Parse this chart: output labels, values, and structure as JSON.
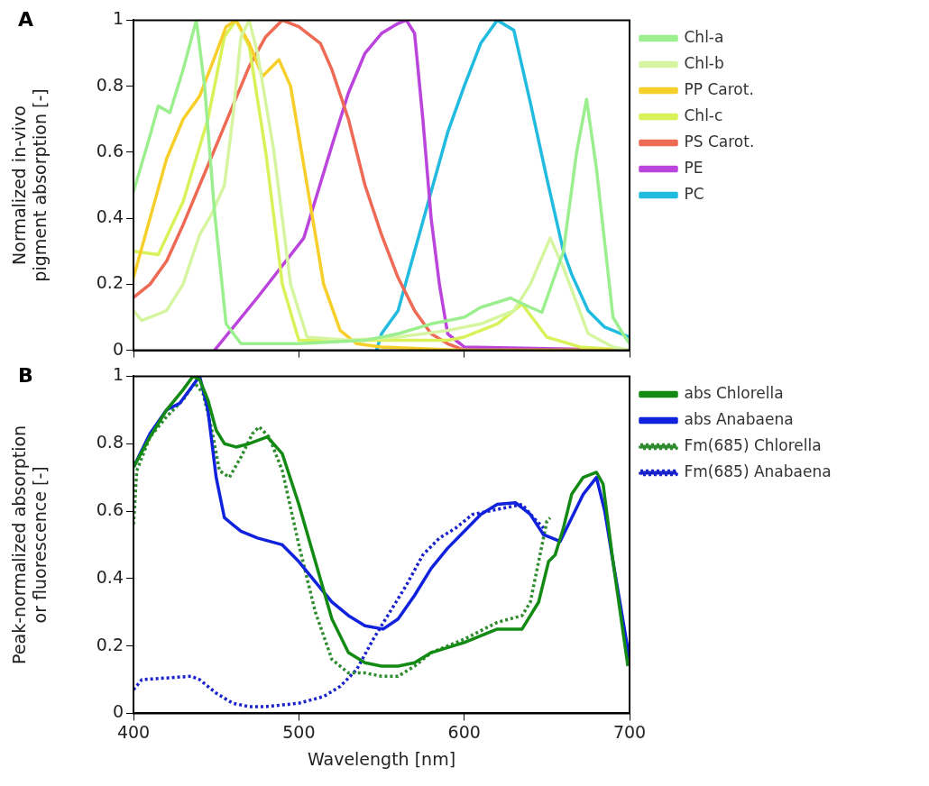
{
  "chart_data": [
    {
      "type": "line",
      "annotations": [
        "A"
      ],
      "ylabel": "Normalized in-vivo\npigment absorption [-]",
      "xlim": [
        400,
        700
      ],
      "xticks": [
        {
          "value": 400,
          "label": null
        },
        {
          "value": 500,
          "label": null
        },
        {
          "value": 600,
          "label": null
        },
        {
          "value": 700,
          "label": null
        }
      ],
      "ylim": [
        0,
        1
      ],
      "yticks": [
        0,
        0.2,
        0.4,
        0.6,
        0.8,
        1.0
      ],
      "tick_labels": "y",
      "legend": "right",
      "series": [
        {
          "name": "Chl-a",
          "color": "#9cef8e",
          "line_style": "solid",
          "x": [
            400,
            410,
            415,
            422,
            430,
            438,
            443,
            449,
            456,
            465,
            480,
            500,
            540,
            560,
            580,
            600,
            610,
            628,
            640,
            647,
            660,
            668,
            674,
            680,
            690,
            696,
            700
          ],
          "values": [
            0.48,
            0.65,
            0.74,
            0.72,
            0.85,
            1.0,
            0.8,
            0.42,
            0.08,
            0.02,
            0.02,
            0.02,
            0.03,
            0.05,
            0.08,
            0.1,
            0.13,
            0.158,
            0.13,
            0.115,
            0.3,
            0.6,
            0.76,
            0.55,
            0.1,
            0.05,
            0.02
          ]
        },
        {
          "name": "Chl-b",
          "color": "#d6f5a0",
          "line_style": "solid",
          "x": [
            400,
            405,
            420,
            430,
            440,
            447,
            455,
            460,
            465,
            470,
            475,
            485,
            495,
            505,
            530,
            560,
            590,
            610,
            630,
            640,
            652,
            660,
            675,
            690,
            700
          ],
          "values": [
            0.12,
            0.09,
            0.12,
            0.2,
            0.35,
            0.41,
            0.5,
            0.7,
            0.95,
            1.0,
            0.9,
            0.6,
            0.2,
            0.04,
            0.03,
            0.04,
            0.06,
            0.08,
            0.12,
            0.2,
            0.34,
            0.25,
            0.05,
            0.01,
            0.0
          ]
        },
        {
          "name": "PP Carot.",
          "color": "#f7cf2a",
          "line_style": "solid",
          "x": [
            400,
            410,
            420,
            430,
            440,
            450,
            456,
            462,
            470,
            478,
            488,
            495,
            505,
            515,
            525,
            535,
            550,
            600,
            700
          ],
          "values": [
            0.22,
            0.4,
            0.58,
            0.7,
            0.77,
            0.9,
            0.98,
            1.0,
            0.93,
            0.83,
            0.88,
            0.8,
            0.5,
            0.2,
            0.06,
            0.02,
            0.01,
            0.0,
            0.0
          ]
        },
        {
          "name": "Chl-c",
          "color": "#d8f25a",
          "line_style": "solid",
          "x": [
            400,
            415,
            430,
            445,
            455,
            462,
            470,
            480,
            490,
            500,
            530,
            560,
            590,
            600,
            620,
            635,
            650,
            670,
            700
          ],
          "values": [
            0.3,
            0.29,
            0.45,
            0.7,
            0.95,
            1.0,
            0.92,
            0.6,
            0.2,
            0.03,
            0.03,
            0.03,
            0.03,
            0.04,
            0.08,
            0.14,
            0.04,
            0.01,
            0.0
          ]
        },
        {
          "name": "PS Carot.",
          "color": "#ee6a55",
          "line_style": "solid",
          "x": [
            400,
            410,
            420,
            430,
            440,
            450,
            460,
            470,
            480,
            490,
            500,
            513,
            520,
            530,
            540,
            550,
            560,
            570,
            580,
            590,
            600,
            700
          ],
          "values": [
            0.16,
            0.2,
            0.27,
            0.38,
            0.5,
            0.62,
            0.74,
            0.86,
            0.95,
            1.0,
            0.98,
            0.93,
            0.85,
            0.7,
            0.5,
            0.35,
            0.22,
            0.12,
            0.05,
            0.02,
            0.0,
            0.0
          ]
        },
        {
          "name": "PE",
          "color": "#bb44dd",
          "line_style": "solid",
          "x": [
            449,
            475,
            503,
            520,
            530,
            540,
            550,
            560,
            565,
            570,
            575,
            580,
            585,
            590,
            600,
            700
          ],
          "values": [
            0.0,
            0.16,
            0.34,
            0.62,
            0.78,
            0.9,
            0.96,
            0.99,
            1.0,
            0.96,
            0.7,
            0.4,
            0.2,
            0.05,
            0.01,
            0.0
          ]
        },
        {
          "name": "PC",
          "color": "#22bbe0",
          "line_style": "solid",
          "x": [
            547,
            550,
            560,
            570,
            580,
            590,
            600,
            610,
            620,
            630,
            640,
            650,
            660,
            665,
            675,
            685,
            695,
            700
          ],
          "values": [
            0.0,
            0.05,
            0.12,
            0.3,
            0.48,
            0.66,
            0.8,
            0.93,
            1.0,
            0.97,
            0.75,
            0.52,
            0.3,
            0.23,
            0.12,
            0.07,
            0.05,
            0.04
          ]
        }
      ]
    },
    {
      "type": "line",
      "annotations": [
        "B"
      ],
      "xlabel": "Wavelength [nm]",
      "ylabel": "Peak-normalized absorption\nor fluorescence [-]",
      "xlim": [
        400,
        700
      ],
      "xticks": [
        400,
        500,
        600,
        700
      ],
      "ylim": [
        0,
        1
      ],
      "yticks": [
        0,
        0.2,
        0.4,
        0.6,
        0.8,
        1.0
      ],
      "legend": "right",
      "series": [
        {
          "name": "abs Chlorella",
          "color": "#138a13",
          "line_style": "solid",
          "x": [
            400,
            410,
            420,
            430,
            436,
            440,
            445,
            450,
            455,
            462,
            470,
            481,
            490,
            500,
            510,
            520,
            530,
            540,
            550,
            560,
            570,
            580,
            600,
            620,
            635,
            645,
            651,
            655,
            660,
            665,
            672,
            680,
            684,
            690,
            699
          ],
          "values": [
            0.73,
            0.82,
            0.9,
            0.96,
            1.0,
            0.99,
            0.93,
            0.84,
            0.8,
            0.79,
            0.8,
            0.82,
            0.77,
            0.62,
            0.45,
            0.28,
            0.18,
            0.15,
            0.14,
            0.14,
            0.15,
            0.18,
            0.21,
            0.25,
            0.25,
            0.33,
            0.45,
            0.47,
            0.55,
            0.65,
            0.7,
            0.715,
            0.68,
            0.45,
            0.14
          ]
        },
        {
          "name": "abs Anabaena",
          "color": "#1122dd",
          "line_style": "solid",
          "x": [
            400,
            410,
            420,
            428,
            440,
            445,
            450,
            455,
            465,
            475,
            490,
            500,
            510,
            520,
            530,
            540,
            551,
            560,
            570,
            580,
            590,
            600,
            610,
            620,
            631,
            640,
            648,
            658,
            665,
            672,
            680,
            685,
            690,
            700
          ],
          "values": [
            0.73,
            0.83,
            0.9,
            0.92,
            1.0,
            0.9,
            0.7,
            0.58,
            0.54,
            0.52,
            0.5,
            0.45,
            0.39,
            0.33,
            0.29,
            0.26,
            0.25,
            0.28,
            0.35,
            0.43,
            0.49,
            0.54,
            0.59,
            0.62,
            0.625,
            0.59,
            0.53,
            0.51,
            0.58,
            0.65,
            0.7,
            0.6,
            0.45,
            0.16
          ]
        },
        {
          "name": "Fm(685) Chlorella",
          "color": "#2e8b2e",
          "line_style": "dotted",
          "x": [
            400,
            402,
            410,
            420,
            430,
            437,
            442,
            447,
            452,
            458,
            465,
            472,
            476,
            482,
            490,
            500,
            510,
            520,
            530,
            540,
            550,
            560,
            570,
            580,
            600,
            620,
            635,
            640,
            645,
            650,
            652
          ],
          "values": [
            0.56,
            0.72,
            0.82,
            0.88,
            0.93,
            0.98,
            0.95,
            0.85,
            0.72,
            0.7,
            0.76,
            0.83,
            0.85,
            0.82,
            0.72,
            0.5,
            0.3,
            0.16,
            0.12,
            0.12,
            0.11,
            0.11,
            0.14,
            0.18,
            0.22,
            0.27,
            0.29,
            0.33,
            0.45,
            0.57,
            0.58
          ]
        },
        {
          "name": "Fm(685) Anabaena",
          "color": "#1a22cc",
          "line_style": "dotted",
          "x": [
            400,
            405,
            420,
            435,
            440,
            450,
            460,
            470,
            480,
            500,
            515,
            525,
            535,
            545,
            555,
            565,
            575,
            585,
            595,
            605,
            615,
            625,
            635,
            642,
            648
          ],
          "values": [
            0.07,
            0.1,
            0.105,
            0.11,
            0.1,
            0.06,
            0.03,
            0.02,
            0.02,
            0.03,
            0.05,
            0.08,
            0.13,
            0.22,
            0.3,
            0.38,
            0.47,
            0.52,
            0.55,
            0.59,
            0.6,
            0.61,
            0.62,
            0.58,
            0.55
          ]
        }
      ]
    }
  ]
}
